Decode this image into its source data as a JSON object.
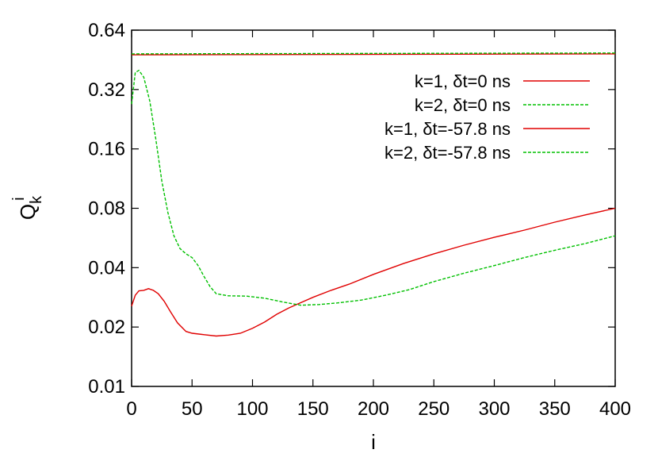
{
  "chart_data": {
    "type": "line",
    "xlabel": "i",
    "ylabel_main": "Q",
    "ylabel_sub": "k",
    "ylabel_sup": "i",
    "y_scale": "log2",
    "xlim": [
      0,
      400
    ],
    "ylim": [
      0.01,
      0.64
    ],
    "x_ticks": [
      0,
      50,
      100,
      150,
      200,
      250,
      300,
      350,
      400
    ],
    "x_tick_labels": [
      "0",
      "50",
      "100",
      "150",
      "200",
      "250",
      "300",
      "350",
      "400"
    ],
    "y_ticks": [
      0.01,
      0.02,
      0.04,
      0.08,
      0.16,
      0.32,
      0.64
    ],
    "y_tick_labels": [
      "0.01",
      "0.02",
      "0.04",
      "0.08",
      "0.16",
      "0.32",
      "0.64"
    ],
    "grid": false,
    "legend_position": "top-right",
    "series": [
      {
        "name": "k=1, δt=0 ns",
        "color": "#e00000",
        "dash": "solid",
        "points": [
          [
            0,
            0.48
          ],
          [
            400,
            0.485
          ]
        ]
      },
      {
        "name": "k=2, δt=0 ns",
        "color": "#00c000",
        "dash": "dashed",
        "points": [
          [
            0,
            0.485
          ],
          [
            400,
            0.49
          ]
        ]
      },
      {
        "name": "k=1, δt=-57.8 ns",
        "color": "#e00000",
        "dash": "solid",
        "points": [
          [
            0,
            0.0255
          ],
          [
            3,
            0.029
          ],
          [
            6,
            0.0305
          ],
          [
            10,
            0.0307
          ],
          [
            14,
            0.0313
          ],
          [
            18,
            0.0307
          ],
          [
            22,
            0.0295
          ],
          [
            27,
            0.027
          ],
          [
            32,
            0.024
          ],
          [
            38,
            0.021
          ],
          [
            45,
            0.019
          ],
          [
            50,
            0.0186
          ],
          [
            60,
            0.0183
          ],
          [
            70,
            0.018
          ],
          [
            80,
            0.0182
          ],
          [
            90,
            0.0186
          ],
          [
            100,
            0.0197
          ],
          [
            110,
            0.0212
          ],
          [
            120,
            0.0232
          ],
          [
            130,
            0.025
          ],
          [
            140,
            0.0266
          ],
          [
            150,
            0.0283
          ],
          [
            165,
            0.0307
          ],
          [
            180,
            0.033
          ],
          [
            200,
            0.037
          ],
          [
            225,
            0.042
          ],
          [
            250,
            0.047
          ],
          [
            275,
            0.052
          ],
          [
            300,
            0.057
          ],
          [
            325,
            0.062
          ],
          [
            350,
            0.068
          ],
          [
            375,
            0.074
          ],
          [
            400,
            0.08
          ]
        ]
      },
      {
        "name": "k=2, δt=-57.8 ns",
        "color": "#00c000",
        "dash": "dashed",
        "points": [
          [
            0,
            0.27
          ],
          [
            3,
            0.39
          ],
          [
            6,
            0.4
          ],
          [
            10,
            0.37
          ],
          [
            15,
            0.28
          ],
          [
            20,
            0.18
          ],
          [
            25,
            0.11
          ],
          [
            30,
            0.076
          ],
          [
            35,
            0.058
          ],
          [
            40,
            0.05
          ],
          [
            45,
            0.047
          ],
          [
            50,
            0.045
          ],
          [
            55,
            0.041
          ],
          [
            60,
            0.036
          ],
          [
            65,
            0.032
          ],
          [
            70,
            0.0295
          ],
          [
            80,
            0.0288
          ],
          [
            95,
            0.0287
          ],
          [
            110,
            0.028
          ],
          [
            125,
            0.0268
          ],
          [
            140,
            0.0258
          ],
          [
            155,
            0.026
          ],
          [
            170,
            0.0265
          ],
          [
            190,
            0.0274
          ],
          [
            210,
            0.029
          ],
          [
            230,
            0.031
          ],
          [
            250,
            0.034
          ],
          [
            275,
            0.0375
          ],
          [
            300,
            0.041
          ],
          [
            325,
            0.045
          ],
          [
            350,
            0.049
          ],
          [
            375,
            0.053
          ],
          [
            400,
            0.058
          ]
        ]
      }
    ]
  }
}
